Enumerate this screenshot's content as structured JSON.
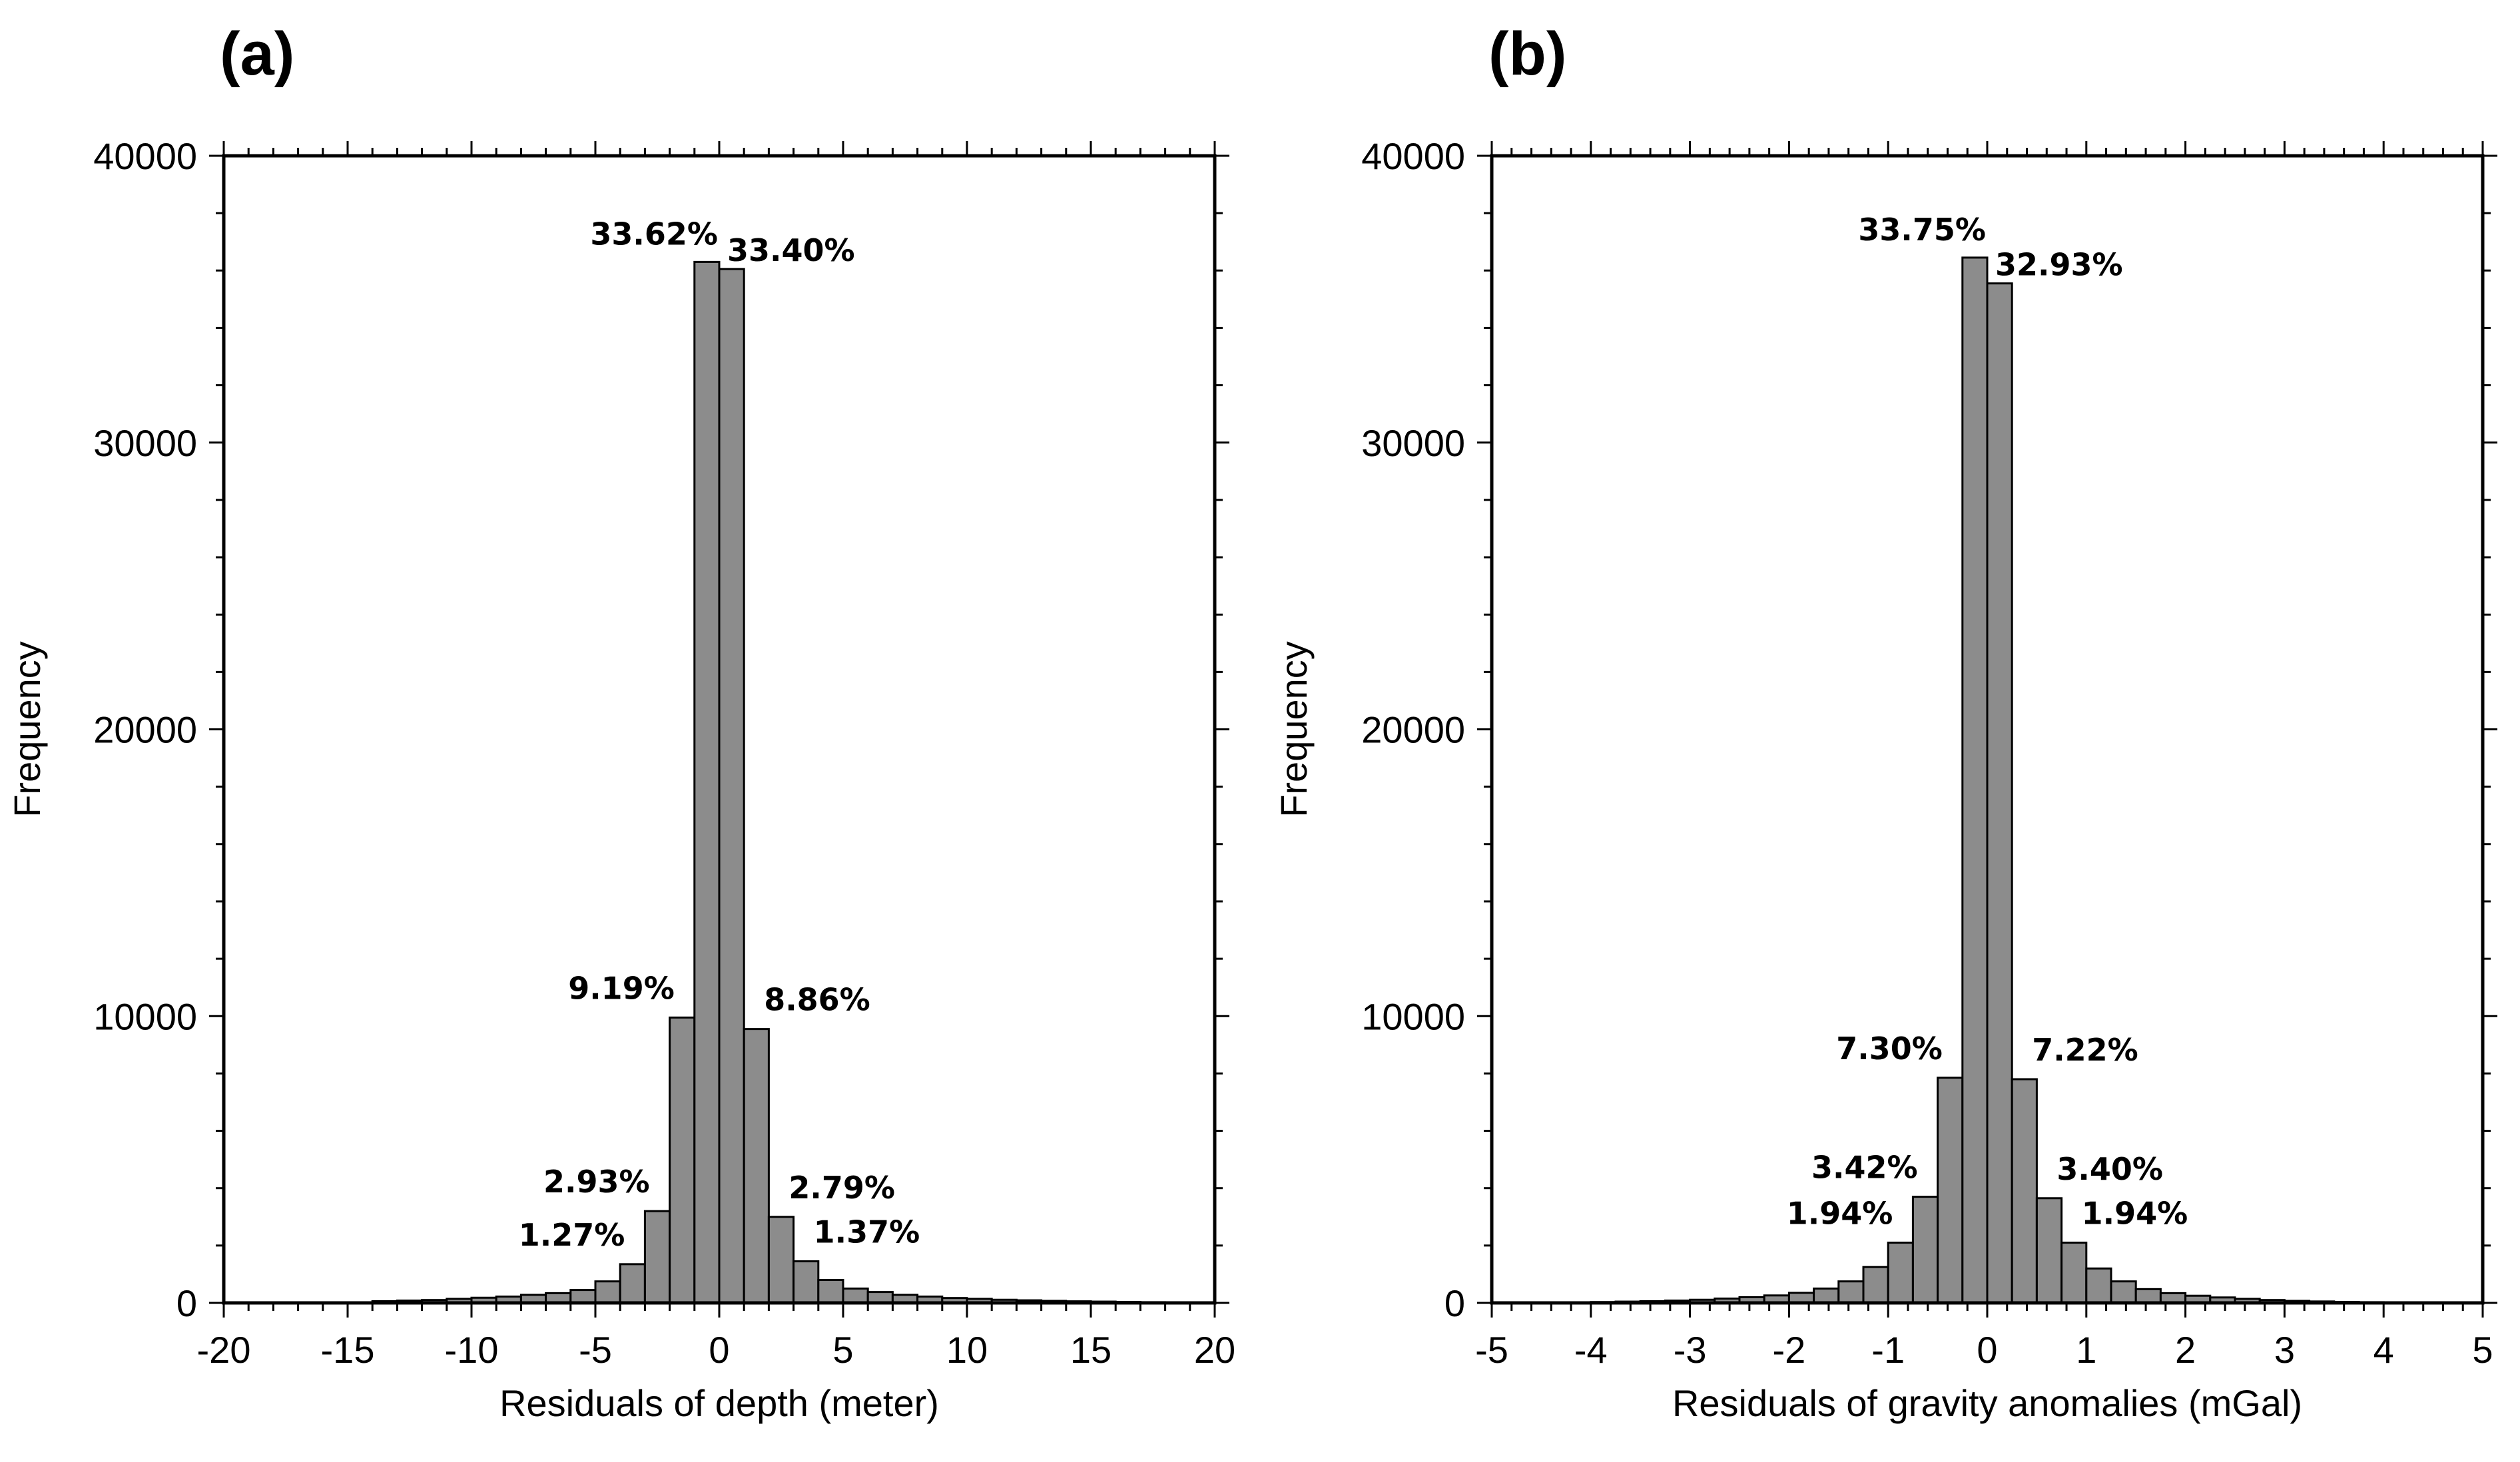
{
  "chart_data": [
    {
      "type": "bar",
      "panel": "(a)",
      "xlabel": "Residuals of depth (meter)",
      "ylabel": "Frequency",
      "xlim": [
        -20,
        20
      ],
      "ylim": [
        0,
        40000
      ],
      "xticks": [
        -20,
        -15,
        -10,
        -5,
        0,
        5,
        10,
        15,
        20
      ],
      "yticks": [
        0,
        10000,
        20000,
        30000,
        40000
      ],
      "bin_width": 1,
      "bins": [
        {
          "x0": -15,
          "x1": -14,
          "value": 20
        },
        {
          "x0": -14,
          "x1": -13,
          "value": 60
        },
        {
          "x0": -13,
          "x1": -12,
          "value": 80
        },
        {
          "x0": -12,
          "x1": -11,
          "value": 100
        },
        {
          "x0": -11,
          "x1": -10,
          "value": 140
        },
        {
          "x0": -10,
          "x1": -9,
          "value": 180
        },
        {
          "x0": -9,
          "x1": -8,
          "value": 220
        },
        {
          "x0": -8,
          "x1": -7,
          "value": 280
        },
        {
          "x0": -7,
          "x1": -6,
          "value": 340
        },
        {
          "x0": -6,
          "x1": -5,
          "value": 450
        },
        {
          "x0": -5,
          "x1": -4,
          "value": 750
        },
        {
          "x0": -4,
          "x1": -3,
          "value": 1350
        },
        {
          "x0": -3,
          "x1": -2,
          "value": 3200
        },
        {
          "x0": -2,
          "x1": -1,
          "value": 9950
        },
        {
          "x0": -1,
          "x1": 0,
          "value": 36300
        },
        {
          "x0": 0,
          "x1": 1,
          "value": 36050
        },
        {
          "x0": 1,
          "x1": 2,
          "value": 9550
        },
        {
          "x0": 2,
          "x1": 3,
          "value": 3000
        },
        {
          "x0": 3,
          "x1": 4,
          "value": 1450
        },
        {
          "x0": 4,
          "x1": 5,
          "value": 800
        },
        {
          "x0": 5,
          "x1": 6,
          "value": 500
        },
        {
          "x0": 6,
          "x1": 7,
          "value": 380
        },
        {
          "x0": 7,
          "x1": 8,
          "value": 280
        },
        {
          "x0": 8,
          "x1": 9,
          "value": 220
        },
        {
          "x0": 9,
          "x1": 10,
          "value": 170
        },
        {
          "x0": 10,
          "x1": 11,
          "value": 140
        },
        {
          "x0": 11,
          "x1": 12,
          "value": 110
        },
        {
          "x0": 12,
          "x1": 13,
          "value": 90
        },
        {
          "x0": 13,
          "x1": 14,
          "value": 70
        },
        {
          "x0": 14,
          "x1": 15,
          "value": 55
        },
        {
          "x0": 15,
          "x1": 16,
          "value": 45
        },
        {
          "x0": 16,
          "x1": 17,
          "value": 35
        },
        {
          "x0": 17,
          "x1": 18,
          "value": 25
        },
        {
          "x0": 18,
          "x1": 19,
          "value": 20
        },
        {
          "x0": 19,
          "x1": 20,
          "value": 15
        }
      ],
      "annotations": [
        {
          "text": "33.62%",
          "bin": 14,
          "side": "left"
        },
        {
          "text": "33.40%",
          "bin": 15,
          "side": "right"
        },
        {
          "text": "9.19%",
          "bin": 13,
          "side": "left"
        },
        {
          "text": "8.86%",
          "bin": 16,
          "side": "right"
        },
        {
          "text": "2.93%",
          "bin": 12,
          "side": "left"
        },
        {
          "text": "2.79%",
          "bin": 17,
          "side": "right"
        },
        {
          "text": "1.27%",
          "bin": 11,
          "side": "left"
        },
        {
          "text": "1.37%",
          "bin": 18,
          "side": "right"
        }
      ]
    },
    {
      "type": "bar",
      "panel": "(b)",
      "xlabel": "Residuals of gravity anomalies (mGal)",
      "ylabel": "Frequency",
      "xlim": [
        -5,
        5
      ],
      "ylim": [
        0,
        40000
      ],
      "xticks": [
        -5,
        -4,
        -3,
        -2,
        -1,
        0,
        1,
        2,
        3,
        4,
        5
      ],
      "yticks": [
        0,
        10000,
        20000,
        30000,
        40000
      ],
      "bin_width": 0.25,
      "bins": [
        {
          "x0": -4.5,
          "x1": -4.25,
          "value": 15
        },
        {
          "x0": -4.25,
          "x1": -4.0,
          "value": 20
        },
        {
          "x0": -4.0,
          "x1": -3.75,
          "value": 30
        },
        {
          "x0": -3.75,
          "x1": -3.5,
          "value": 45
        },
        {
          "x0": -3.5,
          "x1": -3.25,
          "value": 60
        },
        {
          "x0": -3.25,
          "x1": -3.0,
          "value": 80
        },
        {
          "x0": -3.0,
          "x1": -2.75,
          "value": 110
        },
        {
          "x0": -2.75,
          "x1": -2.5,
          "value": 150
        },
        {
          "x0": -2.5,
          "x1": -2.25,
          "value": 200
        },
        {
          "x0": -2.25,
          "x1": -2.0,
          "value": 260
        },
        {
          "x0": -2.0,
          "x1": -1.75,
          "value": 350
        },
        {
          "x0": -1.75,
          "x1": -1.5,
          "value": 500
        },
        {
          "x0": -1.5,
          "x1": -1.25,
          "value": 750
        },
        {
          "x0": -1.25,
          "x1": -1.0,
          "value": 1250
        },
        {
          "x0": -1.0,
          "x1": -0.75,
          "value": 2100
        },
        {
          "x0": -0.75,
          "x1": -0.5,
          "value": 3700
        },
        {
          "x0": -0.5,
          "x1": -0.25,
          "value": 7850
        },
        {
          "x0": -0.25,
          "x1": 0.0,
          "value": 36450
        },
        {
          "x0": 0.0,
          "x1": 0.25,
          "value": 35550
        },
        {
          "x0": 0.25,
          "x1": 0.5,
          "value": 7800
        },
        {
          "x0": 0.5,
          "x1": 0.75,
          "value": 3650
        },
        {
          "x0": 0.75,
          "x1": 1.0,
          "value": 2100
        },
        {
          "x0": 1.0,
          "x1": 1.25,
          "value": 1200
        },
        {
          "x0": 1.25,
          "x1": 1.5,
          "value": 750
        },
        {
          "x0": 1.5,
          "x1": 1.75,
          "value": 480
        },
        {
          "x0": 1.75,
          "x1": 2.0,
          "value": 340
        },
        {
          "x0": 2.0,
          "x1": 2.25,
          "value": 250
        },
        {
          "x0": 2.25,
          "x1": 2.5,
          "value": 190
        },
        {
          "x0": 2.5,
          "x1": 2.75,
          "value": 140
        },
        {
          "x0": 2.75,
          "x1": 3.0,
          "value": 100
        },
        {
          "x0": 3.0,
          "x1": 3.25,
          "value": 70
        },
        {
          "x0": 3.25,
          "x1": 3.5,
          "value": 50
        },
        {
          "x0": 3.5,
          "x1": 3.75,
          "value": 35
        },
        {
          "x0": 3.75,
          "x1": 4.0,
          "value": 25
        },
        {
          "x0": 4.0,
          "x1": 4.25,
          "value": 18
        },
        {
          "x0": 4.25,
          "x1": 4.5,
          "value": 12
        }
      ],
      "annotations": [
        {
          "text": "33.75%",
          "bin": 17,
          "side": "left"
        },
        {
          "text": "32.93%",
          "bin": 18,
          "side": "right"
        },
        {
          "text": "7.30%",
          "bin": 16,
          "side": "left"
        },
        {
          "text": "7.22%",
          "bin": 19,
          "side": "right"
        },
        {
          "text": "3.42%",
          "bin": 15,
          "side": "left"
        },
        {
          "text": "3.40%",
          "bin": 20,
          "side": "right"
        },
        {
          "text": "1.94%",
          "bin": 14,
          "side": "left"
        },
        {
          "text": "1.94%",
          "bin": 21,
          "side": "right"
        }
      ]
    }
  ]
}
